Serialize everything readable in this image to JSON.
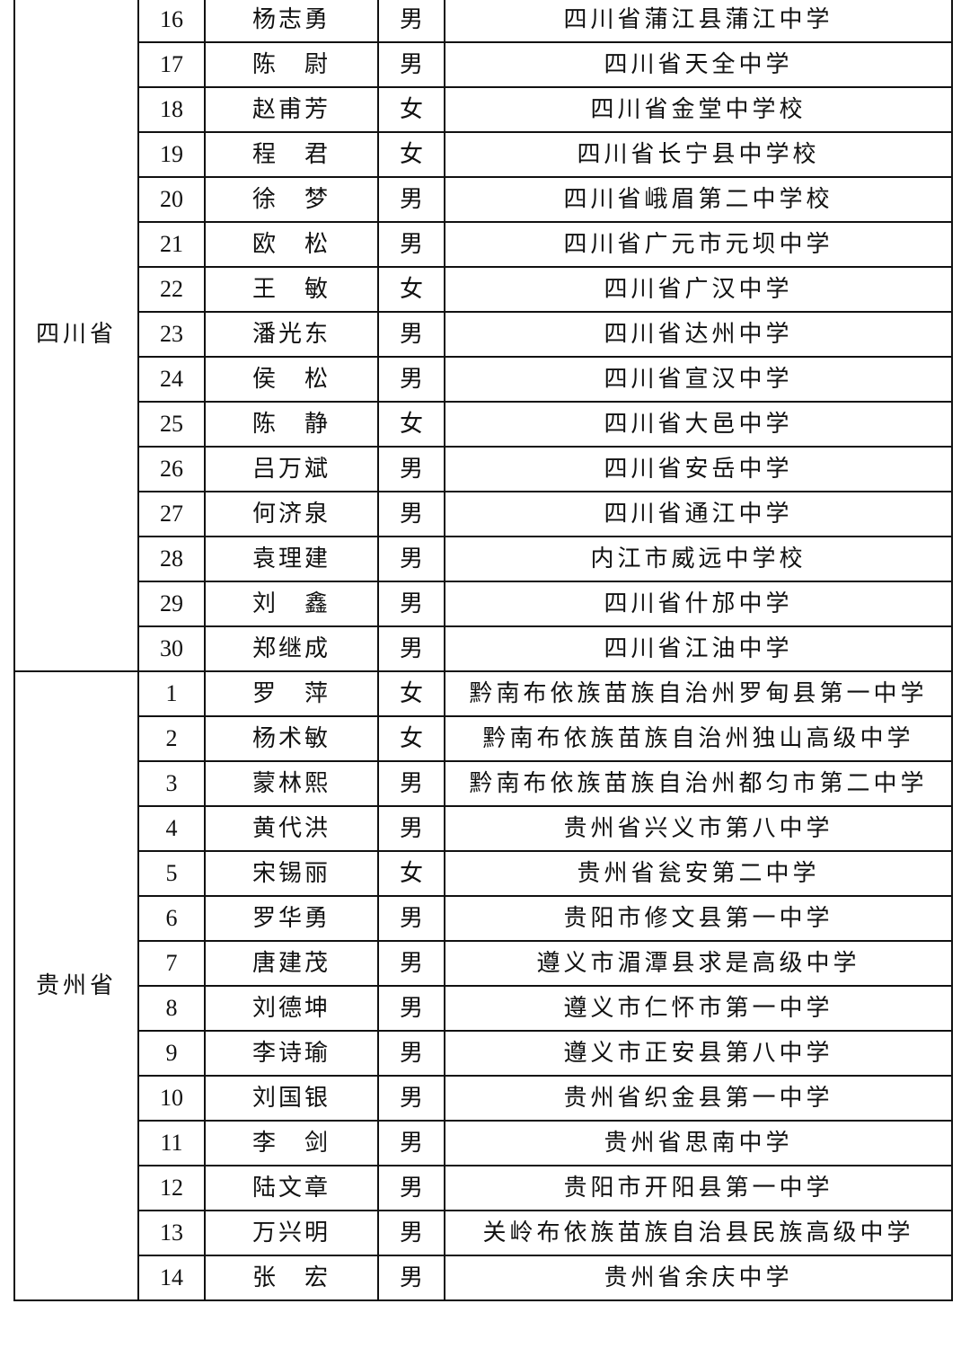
{
  "groups": [
    {
      "province": "四川省",
      "rows": [
        {
          "no": "16",
          "name": "杨志勇",
          "gender": "男",
          "school": "四川省蒲江县蒲江中学"
        },
        {
          "no": "17",
          "name": "陈　尉",
          "gender": "男",
          "school": "四川省天全中学"
        },
        {
          "no": "18",
          "name": "赵甫芳",
          "gender": "女",
          "school": "四川省金堂中学校"
        },
        {
          "no": "19",
          "name": "程　君",
          "gender": "女",
          "school": "四川省长宁县中学校"
        },
        {
          "no": "20",
          "name": "徐　梦",
          "gender": "男",
          "school": "四川省峨眉第二中学校"
        },
        {
          "no": "21",
          "name": "欧　松",
          "gender": "男",
          "school": "四川省广元市元坝中学"
        },
        {
          "no": "22",
          "name": "王　敏",
          "gender": "女",
          "school": "四川省广汉中学"
        },
        {
          "no": "23",
          "name": "潘光东",
          "gender": "男",
          "school": "四川省达州中学"
        },
        {
          "no": "24",
          "name": "侯　松",
          "gender": "男",
          "school": "四川省宣汉中学"
        },
        {
          "no": "25",
          "name": "陈　静",
          "gender": "女",
          "school": "四川省大邑中学"
        },
        {
          "no": "26",
          "name": "吕万斌",
          "gender": "男",
          "school": "四川省安岳中学"
        },
        {
          "no": "27",
          "name": "何济泉",
          "gender": "男",
          "school": "四川省通江中学"
        },
        {
          "no": "28",
          "name": "袁理建",
          "gender": "男",
          "school": "内江市威远中学校"
        },
        {
          "no": "29",
          "name": "刘　鑫",
          "gender": "男",
          "school": "四川省什邡中学"
        },
        {
          "no": "30",
          "name": "郑继成",
          "gender": "男",
          "school": "四川省江油中学"
        }
      ]
    },
    {
      "province": "贵州省",
      "rows": [
        {
          "no": "1",
          "name": "罗　萍",
          "gender": "女",
          "school": "黔南布依族苗族自治州罗甸县第一中学"
        },
        {
          "no": "2",
          "name": "杨术敏",
          "gender": "女",
          "school": "黔南布依族苗族自治州独山高级中学"
        },
        {
          "no": "3",
          "name": "蒙林熙",
          "gender": "男",
          "school": "黔南布依族苗族自治州都匀市第二中学"
        },
        {
          "no": "4",
          "name": "黄代洪",
          "gender": "男",
          "school": "贵州省兴义市第八中学"
        },
        {
          "no": "5",
          "name": "宋锡丽",
          "gender": "女",
          "school": "贵州省瓮安第二中学"
        },
        {
          "no": "6",
          "name": "罗华勇",
          "gender": "男",
          "school": "贵阳市修文县第一中学"
        },
        {
          "no": "7",
          "name": "唐建茂",
          "gender": "男",
          "school": "遵义市湄潭县求是高级中学"
        },
        {
          "no": "8",
          "name": "刘德坤",
          "gender": "男",
          "school": "遵义市仁怀市第一中学"
        },
        {
          "no": "9",
          "name": "李诗瑜",
          "gender": "男",
          "school": "遵义市正安县第八中学"
        },
        {
          "no": "10",
          "name": "刘国银",
          "gender": "男",
          "school": "贵州省织金县第一中学"
        },
        {
          "no": "11",
          "name": "李　剑",
          "gender": "男",
          "school": "贵州省思南中学"
        },
        {
          "no": "12",
          "name": "陆文章",
          "gender": "男",
          "school": "贵阳市开阳县第一中学"
        },
        {
          "no": "13",
          "name": "万兴明",
          "gender": "男",
          "school": "关岭布依族苗族自治县民族高级中学"
        },
        {
          "no": "14",
          "name": "张　宏",
          "gender": "男",
          "school": "贵州省余庆中学"
        }
      ]
    }
  ]
}
